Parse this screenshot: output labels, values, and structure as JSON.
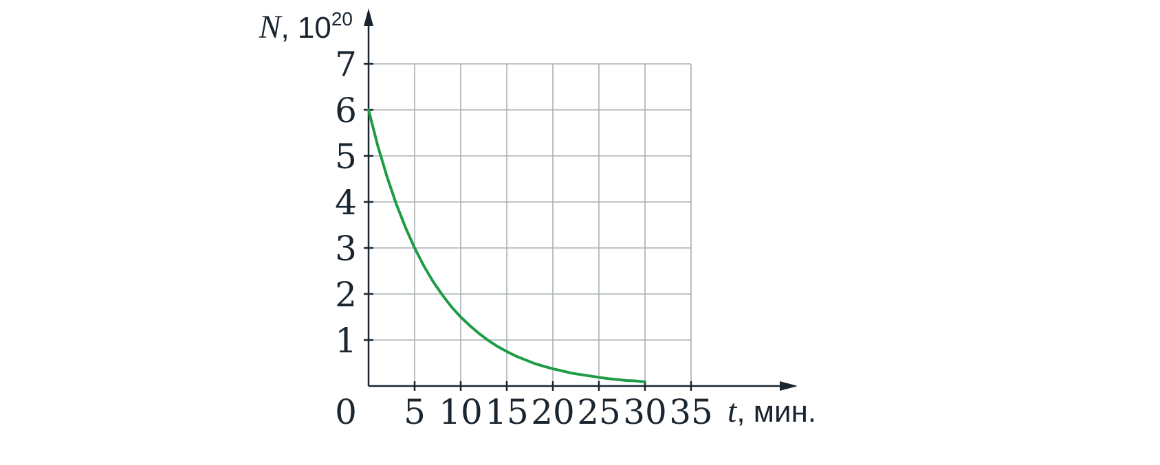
{
  "chart_data": {
    "type": "line",
    "ylabel": {
      "var": "N",
      "unit": ", 10",
      "exp": "20"
    },
    "xlabel": {
      "var": "t",
      "unit": ", мин."
    },
    "origin_label": "0",
    "x_ticks": [
      "5",
      "10",
      "15",
      "20",
      "25",
      "30",
      "35"
    ],
    "y_ticks": [
      "1",
      "2",
      "3",
      "4",
      "5",
      "6",
      "7"
    ],
    "xlim": [
      0,
      35
    ],
    "ylim": [
      0,
      7
    ],
    "grid": true,
    "series": [
      {
        "color": "#1e9b45",
        "x": [
          0,
          1,
          2,
          3,
          4,
          5,
          6,
          7,
          8,
          9,
          10,
          11,
          12,
          13,
          14,
          15,
          16,
          17,
          18,
          19,
          20,
          21,
          22,
          23,
          24,
          25,
          26,
          27,
          28,
          29,
          30
        ],
        "y": [
          6,
          5.22,
          4.55,
          3.96,
          3.45,
          3,
          2.61,
          2.27,
          1.98,
          1.72,
          1.5,
          1.31,
          1.14,
          0.99,
          0.86,
          0.75,
          0.65,
          0.57,
          0.49,
          0.43,
          0.375,
          0.33,
          0.28,
          0.25,
          0.22,
          0.19,
          0.16,
          0.14,
          0.12,
          0.11,
          0.09
        ]
      }
    ]
  },
  "colors": {
    "axis": "#1a2530",
    "grid": "#a9b1b5",
    "curve": "#1e9b45"
  }
}
